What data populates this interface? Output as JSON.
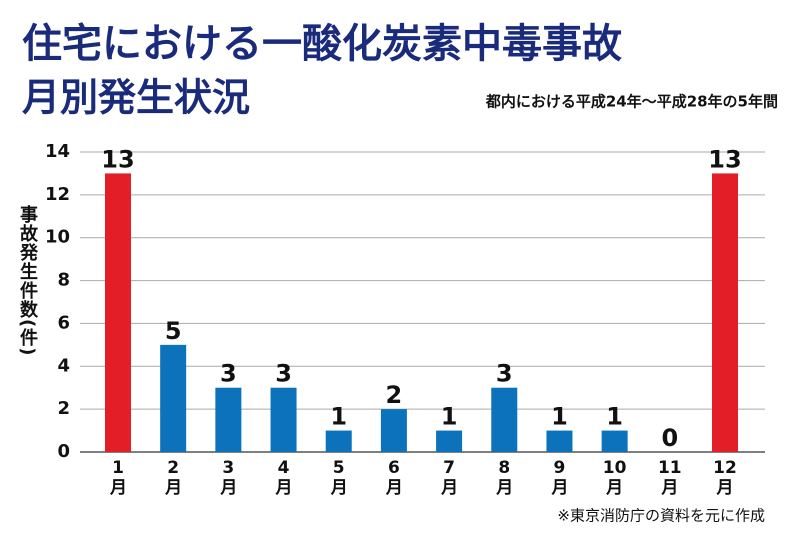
{
  "chart_data": {
    "type": "bar",
    "title": "住宅における一酸化炭素中毒事故",
    "title_line2": "月別発生状況",
    "subtitle": "都内における平成24年～平成28年の5年間",
    "y_label": "事故発生件数(件)",
    "note": "※東京消防庁の資料を元に作成",
    "categories": [
      "1月",
      "2月",
      "3月",
      "4月",
      "5月",
      "6月",
      "7月",
      "8月",
      "9月",
      "10月",
      "11月",
      "12月"
    ],
    "values": [
      13,
      5,
      3,
      3,
      1,
      2,
      1,
      3,
      1,
      1,
      0,
      13
    ],
    "colors": [
      "#e31e26",
      "#0b72bb",
      "#0b72bb",
      "#0b72bb",
      "#0b72bb",
      "#0b72bb",
      "#0b72bb",
      "#0b72bb",
      "#0b72bb",
      "#0b72bb",
      "#0b72bb",
      "#e31e26"
    ],
    "ylim": [
      0,
      14
    ],
    "yticks": [
      0,
      2,
      4,
      6,
      8,
      10,
      12,
      14
    ],
    "grid": true
  }
}
